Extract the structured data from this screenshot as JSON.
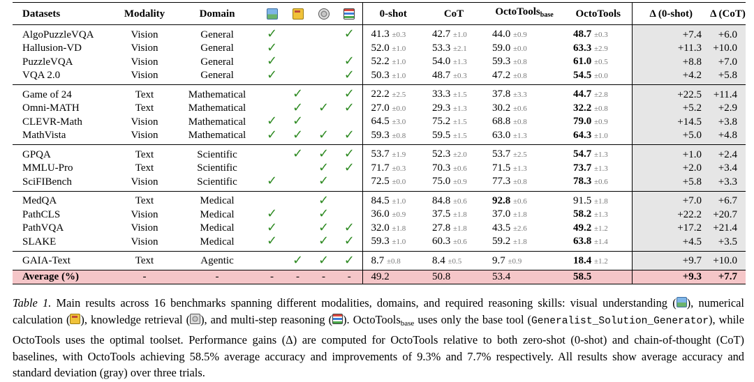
{
  "table": {
    "headers": {
      "datasets": "Datasets",
      "modality": "Modality",
      "domain": "Domain",
      "icons": [
        "visual-understanding",
        "numerical-calculation",
        "knowledge-retrieval",
        "multi-step-reasoning"
      ],
      "zero_shot": "0-shot",
      "cot": "CoT",
      "octo_base_main": "OctoTools",
      "octo_base_sub": "base",
      "octo": "OctoTools",
      "delta_zero": "Δ (0-shot)",
      "delta_cot": "Δ (CoT)"
    },
    "check_symbol": "✓",
    "groups": [
      [
        {
          "name": "AlgoPuzzleVQA",
          "modality": "Vision",
          "domain": "General",
          "skills": [
            true,
            false,
            false,
            true
          ],
          "zero": "41.3",
          "zero_sd": "±0.3",
          "cot": "42.7",
          "cot_sd": "±1.0",
          "base": "44.0",
          "base_sd": "±0.9",
          "octo": "48.7",
          "octo_sd": "±0.3",
          "best": "octo",
          "d0": "+7.4",
          "dc": "+6.0"
        },
        {
          "name": "Hallusion-VD",
          "modality": "Vision",
          "domain": "General",
          "skills": [
            true,
            false,
            false,
            false
          ],
          "zero": "52.0",
          "zero_sd": "±1.0",
          "cot": "53.3",
          "cot_sd": "±2.1",
          "base": "59.0",
          "base_sd": "±0.0",
          "octo": "63.3",
          "octo_sd": "±2.9",
          "best": "octo",
          "d0": "+11.3",
          "dc": "+10.0"
        },
        {
          "name": "PuzzleVQA",
          "modality": "Vision",
          "domain": "General",
          "skills": [
            true,
            false,
            false,
            true
          ],
          "zero": "52.2",
          "zero_sd": "±1.0",
          "cot": "54.0",
          "cot_sd": "±1.3",
          "base": "59.3",
          "base_sd": "±0.8",
          "octo": "61.0",
          "octo_sd": "±0.5",
          "best": "octo",
          "d0": "+8.8",
          "dc": "+7.0"
        },
        {
          "name": "VQA 2.0",
          "modality": "Vision",
          "domain": "General",
          "skills": [
            true,
            false,
            false,
            true
          ],
          "zero": "50.3",
          "zero_sd": "±1.0",
          "cot": "48.7",
          "cot_sd": "±0.3",
          "base": "47.2",
          "base_sd": "±0.8",
          "octo": "54.5",
          "octo_sd": "±0.0",
          "best": "octo",
          "d0": "+4.2",
          "dc": "+5.8"
        }
      ],
      [
        {
          "name": "Game of 24",
          "modality": "Text",
          "domain": "Mathematical",
          "skills": [
            false,
            true,
            false,
            true
          ],
          "zero": "22.2",
          "zero_sd": "±2.5",
          "cot": "33.3",
          "cot_sd": "±1.5",
          "base": "37.8",
          "base_sd": "±3.3",
          "octo": "44.7",
          "octo_sd": "±2.8",
          "best": "octo",
          "d0": "+22.5",
          "dc": "+11.4"
        },
        {
          "name": "Omni-MATH",
          "modality": "Text",
          "domain": "Mathematical",
          "skills": [
            false,
            true,
            true,
            true
          ],
          "zero": "27.0",
          "zero_sd": "±0.0",
          "cot": "29.3",
          "cot_sd": "±1.3",
          "base": "30.2",
          "base_sd": "±0.6",
          "octo": "32.2",
          "octo_sd": "±0.8",
          "best": "octo",
          "d0": "+5.2",
          "dc": "+2.9"
        },
        {
          "name": "CLEVR-Math",
          "modality": "Vision",
          "domain": "Mathematical",
          "skills": [
            true,
            true,
            false,
            false
          ],
          "zero": "64.5",
          "zero_sd": "±3.0",
          "cot": "75.2",
          "cot_sd": "±1.5",
          "base": "68.8",
          "base_sd": "±0.8",
          "octo": "79.0",
          "octo_sd": "±0.9",
          "best": "octo",
          "d0": "+14.5",
          "dc": "+3.8"
        },
        {
          "name": "MathVista",
          "modality": "Vision",
          "domain": "Mathematical",
          "skills": [
            true,
            true,
            true,
            true
          ],
          "zero": "59.3",
          "zero_sd": "±0.8",
          "cot": "59.5",
          "cot_sd": "±1.5",
          "base": "63.0",
          "base_sd": "±1.3",
          "octo": "64.3",
          "octo_sd": "±1.0",
          "best": "octo",
          "d0": "+5.0",
          "dc": "+4.8"
        }
      ],
      [
        {
          "name": "GPQA",
          "modality": "Text",
          "domain": "Scientific",
          "skills": [
            false,
            true,
            true,
            true
          ],
          "zero": "53.7",
          "zero_sd": "±1.9",
          "cot": "52.3",
          "cot_sd": "±2.0",
          "base": "53.7",
          "base_sd": "±2.5",
          "octo": "54.7",
          "octo_sd": "±1.3",
          "best": "octo",
          "d0": "+1.0",
          "dc": "+2.4"
        },
        {
          "name": "MMLU-Pro",
          "modality": "Text",
          "domain": "Scientific",
          "skills": [
            false,
            false,
            true,
            true
          ],
          "zero": "71.7",
          "zero_sd": "±0.3",
          "cot": "70.3",
          "cot_sd": "±0.6",
          "base": "71.5",
          "base_sd": "±1.3",
          "octo": "73.7",
          "octo_sd": "±1.3",
          "best": "octo",
          "d0": "+2.0",
          "dc": "+3.4"
        },
        {
          "name": "SciFIBench",
          "modality": "Vision",
          "domain": "Scientific",
          "skills": [
            true,
            false,
            true,
            false
          ],
          "zero": "72.5",
          "zero_sd": "±0.0",
          "cot": "75.0",
          "cot_sd": "±0.9",
          "base": "77.3",
          "base_sd": "±0.8",
          "octo": "78.3",
          "octo_sd": "±0.6",
          "best": "octo",
          "d0": "+5.8",
          "dc": "+3.3"
        }
      ],
      [
        {
          "name": "MedQA",
          "modality": "Text",
          "domain": "Medical",
          "skills": [
            false,
            false,
            true,
            false
          ],
          "zero": "84.5",
          "zero_sd": "±1.0",
          "cot": "84.8",
          "cot_sd": "±0.6",
          "base": "92.8",
          "base_sd": "±0.6",
          "octo": "91.5",
          "octo_sd": "±1.8",
          "best": "base",
          "d0": "+7.0",
          "dc": "+6.7"
        },
        {
          "name": "PathCLS",
          "modality": "Vision",
          "domain": "Medical",
          "skills": [
            true,
            false,
            true,
            false
          ],
          "zero": "36.0",
          "zero_sd": "±0.9",
          "cot": "37.5",
          "cot_sd": "±1.8",
          "base": "37.0",
          "base_sd": "±1.8",
          "octo": "58.2",
          "octo_sd": "±1.3",
          "best": "octo",
          "d0": "+22.2",
          "dc": "+20.7"
        },
        {
          "name": "PathVQA",
          "modality": "Vision",
          "domain": "Medical",
          "skills": [
            true,
            false,
            true,
            true
          ],
          "zero": "32.0",
          "zero_sd": "±1.8",
          "cot": "27.8",
          "cot_sd": "±1.8",
          "base": "43.5",
          "base_sd": "±2.6",
          "octo": "49.2",
          "octo_sd": "±1.2",
          "best": "octo",
          "d0": "+17.2",
          "dc": "+21.4"
        },
        {
          "name": "SLAKE",
          "modality": "Vision",
          "domain": "Medical",
          "skills": [
            true,
            false,
            true,
            true
          ],
          "zero": "59.3",
          "zero_sd": "±1.0",
          "cot": "60.3",
          "cot_sd": "±0.6",
          "base": "59.2",
          "base_sd": "±1.8",
          "octo": "63.8",
          "octo_sd": "±1.4",
          "best": "octo",
          "d0": "+4.5",
          "dc": "+3.5"
        }
      ],
      [
        {
          "name": "GAIA-Text",
          "modality": "Text",
          "domain": "Agentic",
          "skills": [
            false,
            true,
            true,
            true
          ],
          "zero": "8.7",
          "zero_sd": "±0.8",
          "cot": "8.4",
          "cot_sd": "±0.5",
          "base": "9.7",
          "base_sd": "±0.9",
          "octo": "18.4",
          "octo_sd": "±1.2",
          "best": "octo",
          "d0": "+9.7",
          "dc": "+10.0"
        }
      ]
    ],
    "average": {
      "label": "Average (%)",
      "modality": "-",
      "domain": "-",
      "skills": [
        "-",
        "-",
        "-",
        "-"
      ],
      "zero": "49.2",
      "cot": "50.8",
      "base": "53.4",
      "octo": "58.5",
      "d0": "+9.3",
      "dc": "+7.7"
    }
  },
  "caption": {
    "label": "Table 1.",
    "t1": " Main results across 16 benchmarks spanning different modalities, domains, and required reasoning skills: visual understanding (",
    "t2": "), numerical calculation (",
    "t3": "), knowledge retrieval (",
    "t4": "), and multi-step reasoning (",
    "t5": "). OctoTools",
    "t5_sub": "base",
    "t6": " uses only the base tool (",
    "mono": "Generalist_Solution_Generator",
    "t7": "), while OctoTools uses the optimal toolset. Performance gains (Δ) are computed for OctoTools relative to both zero-shot (0-shot) and chain-of-thought (CoT) baselines, with OctoTools achieving 58.5% average accuracy and improvements of 9.3% and 7.7% respectively. All results show average accuracy and standard deviation (gray) over three trials."
  },
  "colors": {
    "check": "#2e8a22",
    "std_gray": "#7a7a7a",
    "delta_bg": "#e6e6e6",
    "average_bg": "#f5c6c8"
  }
}
